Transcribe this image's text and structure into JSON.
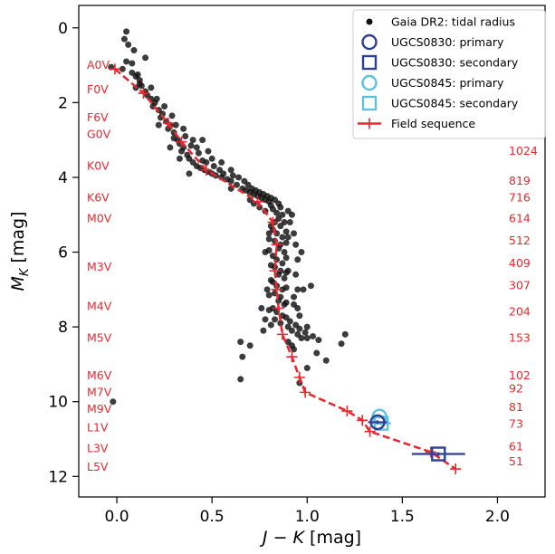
{
  "chart_data": {
    "type": "scatter",
    "xlabel": "J − K [mag]",
    "ylabel": "M_K [mag]",
    "xlim": [
      -0.2,
      2.25
    ],
    "ylim": [
      12.55,
      -0.6
    ],
    "y_inverted": true,
    "grid": false,
    "legend_position": "top-right",
    "x_ticks": [
      {
        "value": 0.0,
        "label": "0.0"
      },
      {
        "value": 0.5,
        "label": "0.5"
      },
      {
        "value": 1.0,
        "label": "1.0"
      },
      {
        "value": 1.5,
        "label": "1.5"
      },
      {
        "value": 2.0,
        "label": "2.0"
      }
    ],
    "y_ticks": [
      {
        "value": 0,
        "label": "0"
      },
      {
        "value": 2,
        "label": "2"
      },
      {
        "value": 4,
        "label": "4"
      },
      {
        "value": 6,
        "label": "6"
      },
      {
        "value": 8,
        "label": "8"
      },
      {
        "value": 10,
        "label": "10"
      },
      {
        "value": 12,
        "label": "12"
      }
    ],
    "legend": [
      {
        "label": "Gaia DR2: tidal radius",
        "marker": "dot",
        "color": "#111111"
      },
      {
        "label": "UGCS0830: primary",
        "marker": "circle",
        "color": "#2e3f93"
      },
      {
        "label": "UGCS0830: secondary",
        "marker": "square",
        "color": "#2e3f93"
      },
      {
        "label": "UGCS0845: primary",
        "marker": "circle",
        "color": "#5bc4dc"
      },
      {
        "label": "UGCS0845: secondary",
        "marker": "square",
        "color": "#5bc4dc"
      },
      {
        "label": "Field sequence",
        "marker": "plus-dashed",
        "color": "#e8282e"
      }
    ],
    "field_sequence": [
      {
        "x": -0.01,
        "y": 1.1
      },
      {
        "x": 0.14,
        "y": 1.75
      },
      {
        "x": 0.27,
        "y": 2.55
      },
      {
        "x": 0.34,
        "y": 3.05
      },
      {
        "x": 0.47,
        "y": 3.8
      },
      {
        "x": 0.74,
        "y": 4.65
      },
      {
        "x": 0.82,
        "y": 5.2
      },
      {
        "x": 0.84,
        "y": 5.8
      },
      {
        "x": 0.83,
        "y": 6.5
      },
      {
        "x": 0.84,
        "y": 7.0
      },
      {
        "x": 0.85,
        "y": 7.5
      },
      {
        "x": 0.87,
        "y": 8.2
      },
      {
        "x": 0.92,
        "y": 8.8
      },
      {
        "x": 0.96,
        "y": 9.35
      },
      {
        "x": 0.99,
        "y": 9.75
      },
      {
        "x": 1.21,
        "y": 10.25
      },
      {
        "x": 1.29,
        "y": 10.5
      },
      {
        "x": 1.33,
        "y": 10.8
      },
      {
        "x": 1.65,
        "y": 11.35
      },
      {
        "x": 1.78,
        "y": 11.8
      }
    ],
    "ugcs0830": {
      "primary": {
        "x": 1.37,
        "y": 10.55,
        "xerr": 0.05,
        "yerr": 0.05
      },
      "secondary": {
        "x": 1.69,
        "y": 11.4,
        "xerr": 0.14,
        "yerr": 0.05
      }
    },
    "ugcs0845": {
      "primary": {
        "x": 1.38,
        "y": 10.4,
        "xerr": 0.03,
        "yerr": 0.05
      },
      "secondary": {
        "x": 1.39,
        "y": 10.58,
        "xerr": 0.05,
        "yerr": 0.05
      }
    },
    "spectral_types": [
      {
        "label": "A0V",
        "y": 1.0
      },
      {
        "label": "F0V",
        "y": 1.65
      },
      {
        "label": "F6V",
        "y": 2.4
      },
      {
        "label": "G0V",
        "y": 2.85
      },
      {
        "label": "K0V",
        "y": 3.7
      },
      {
        "label": "K6V",
        "y": 4.55
      },
      {
        "label": "M0V",
        "y": 5.1
      },
      {
        "label": "M3V",
        "y": 6.4
      },
      {
        "label": "M4V",
        "y": 7.45
      },
      {
        "label": "M5V",
        "y": 8.3
      },
      {
        "label": "M6V",
        "y": 9.3
      },
      {
        "label": "M7V",
        "y": 9.75
      },
      {
        "label": "M9V",
        "y": 10.2
      },
      {
        "label": "L1V",
        "y": 10.7
      },
      {
        "label": "L3V",
        "y": 11.25
      },
      {
        "label": "L5V",
        "y": 11.75
      }
    ],
    "right_values": [
      {
        "label": "1024",
        "y": 3.3
      },
      {
        "label": "819",
        "y": 4.1
      },
      {
        "label": "716",
        "y": 4.55
      },
      {
        "label": "614",
        "y": 5.1
      },
      {
        "label": "512",
        "y": 5.7
      },
      {
        "label": "409",
        "y": 6.3
      },
      {
        "label": "307",
        "y": 6.9
      },
      {
        "label": "204",
        "y": 7.6
      },
      {
        "label": "153",
        "y": 8.3
      },
      {
        "label": "102",
        "y": 9.3
      },
      {
        "label": "92",
        "y": 9.65
      },
      {
        "label": "81",
        "y": 10.15
      },
      {
        "label": "73",
        "y": 10.6
      },
      {
        "label": "61",
        "y": 11.2
      },
      {
        "label": "51",
        "y": 11.6
      }
    ],
    "gaia_points": [
      [
        0.06,
        0.45
      ],
      [
        0.05,
        0.9
      ],
      [
        0.08,
        0.95
      ],
      [
        -0.03,
        1.05
      ],
      [
        0.03,
        1.1
      ],
      [
        0.1,
        1.3
      ],
      [
        0.09,
        0.6
      ],
      [
        0.11,
        1.25
      ],
      [
        0.12,
        1.4
      ],
      [
        0.12,
        1.5
      ],
      [
        0.1,
        1.6
      ],
      [
        0.13,
        1.55
      ],
      [
        0.15,
        1.7
      ],
      [
        0.16,
        1.8
      ],
      [
        0.18,
        1.9
      ],
      [
        0.2,
        2.0
      ],
      [
        0.19,
        2.1
      ],
      [
        0.22,
        2.2
      ],
      [
        0.24,
        2.3
      ],
      [
        0.23,
        2.4
      ],
      [
        0.26,
        2.5
      ],
      [
        0.28,
        2.6
      ],
      [
        0.27,
        2.7
      ],
      [
        0.3,
        2.8
      ],
      [
        0.3,
        2.95
      ],
      [
        0.32,
        3.0
      ],
      [
        0.33,
        3.1
      ],
      [
        0.35,
        3.2
      ],
      [
        0.34,
        3.3
      ],
      [
        0.37,
        3.4
      ],
      [
        0.38,
        3.5
      ],
      [
        0.4,
        3.6
      ],
      [
        0.42,
        3.7
      ],
      [
        0.44,
        3.75
      ],
      [
        0.46,
        3.8
      ],
      [
        0.48,
        3.85
      ],
      [
        0.5,
        3.9
      ],
      [
        0.52,
        3.95
      ],
      [
        0.55,
        4.0
      ],
      [
        0.58,
        4.05
      ],
      [
        0.6,
        4.1
      ],
      [
        0.63,
        4.2
      ],
      [
        0.66,
        4.3
      ],
      [
        0.68,
        4.35
      ],
      [
        0.7,
        4.4
      ],
      [
        0.72,
        4.45
      ],
      [
        0.74,
        4.5
      ],
      [
        0.76,
        4.55
      ],
      [
        0.78,
        4.6
      ],
      [
        0.8,
        4.65
      ],
      [
        0.81,
        4.75
      ],
      [
        0.82,
        4.85
      ],
      [
        0.84,
        4.95
      ],
      [
        0.85,
        5.1
      ],
      [
        0.83,
        5.2
      ],
      [
        0.86,
        5.3
      ],
      [
        0.82,
        5.4
      ],
      [
        0.84,
        5.5
      ],
      [
        0.87,
        5.6
      ],
      [
        0.83,
        5.7
      ],
      [
        0.86,
        5.8
      ],
      [
        0.85,
        5.9
      ],
      [
        0.88,
        6.0
      ],
      [
        0.82,
        6.1
      ],
      [
        0.84,
        6.2
      ],
      [
        0.87,
        6.3
      ],
      [
        0.83,
        6.4
      ],
      [
        0.86,
        6.5
      ],
      [
        0.85,
        6.6
      ],
      [
        0.88,
        6.7
      ],
      [
        0.82,
        6.8
      ],
      [
        0.84,
        6.9
      ],
      [
        0.87,
        7.0
      ],
      [
        0.83,
        7.1
      ],
      [
        0.86,
        7.2
      ],
      [
        0.85,
        7.3
      ],
      [
        0.88,
        7.4
      ],
      [
        0.82,
        7.5
      ],
      [
        0.84,
        7.6
      ],
      [
        0.87,
        7.7
      ],
      [
        0.83,
        7.8
      ],
      [
        0.86,
        7.9
      ],
      [
        0.9,
        8.0
      ],
      [
        0.92,
        8.1
      ],
      [
        0.95,
        8.2
      ],
      [
        0.78,
        6.0
      ],
      [
        0.9,
        6.5
      ],
      [
        0.79,
        7.0
      ],
      [
        0.93,
        7.2
      ],
      [
        0.78,
        7.8
      ],
      [
        0.95,
        7.5
      ],
      [
        0.9,
        5.6
      ],
      [
        0.8,
        5.5
      ],
      [
        0.97,
        8.3
      ],
      [
        0.93,
        8.6
      ],
      [
        0.66,
        8.8
      ],
      [
        0.65,
        9.4
      ],
      [
        0.7,
        8.5
      ],
      [
        0.65,
        8.4
      ],
      [
        1.0,
        8.3
      ],
      [
        1.2,
        8.2
      ],
      [
        1.18,
        8.45
      ],
      [
        1.05,
        8.7
      ],
      [
        1.1,
        8.9
      ],
      [
        1.0,
        9.1
      ],
      [
        0.96,
        9.5
      ],
      [
        1.0,
        8.0
      ],
      [
        0.97,
        6.0
      ],
      [
        0.98,
        7.0
      ],
      [
        1.02,
        6.9
      ],
      [
        0.76,
        7.5
      ],
      [
        0.77,
        8.1
      ],
      [
        -0.02,
        10.0
      ],
      [
        0.05,
        0.1
      ],
      [
        0.04,
        0.3
      ],
      [
        0.15,
        0.8
      ],
      [
        0.08,
        1.2
      ],
      [
        0.18,
        1.6
      ],
      [
        0.21,
        1.9
      ],
      [
        0.25,
        2.1
      ],
      [
        0.29,
        2.35
      ],
      [
        0.31,
        2.6
      ],
      [
        0.36,
        2.9
      ],
      [
        0.39,
        3.15
      ],
      [
        0.43,
        3.35
      ],
      [
        0.45,
        3.55
      ],
      [
        0.47,
        3.6
      ],
      [
        0.51,
        3.7
      ],
      [
        0.54,
        3.8
      ],
      [
        0.56,
        3.9
      ],
      [
        0.61,
        3.95
      ],
      [
        0.64,
        4.0
      ],
      [
        0.67,
        4.1
      ],
      [
        0.69,
        4.2
      ],
      [
        0.71,
        4.3
      ],
      [
        0.73,
        4.35
      ],
      [
        0.75,
        4.4
      ],
      [
        0.77,
        4.45
      ],
      [
        0.79,
        4.5
      ],
      [
        0.81,
        4.55
      ],
      [
        0.83,
        4.6
      ],
      [
        0.85,
        4.7
      ],
      [
        0.86,
        4.8
      ],
      [
        0.87,
        5.0
      ],
      [
        0.88,
        5.2
      ],
      [
        0.81,
        5.3
      ],
      [
        0.89,
        5.45
      ],
      [
        0.8,
        5.65
      ],
      [
        0.89,
        5.75
      ],
      [
        0.8,
        5.95
      ],
      [
        0.89,
        6.15
      ],
      [
        0.81,
        6.35
      ],
      [
        0.89,
        6.55
      ],
      [
        0.81,
        6.75
      ],
      [
        0.89,
        6.95
      ],
      [
        0.8,
        7.15
      ],
      [
        0.89,
        7.35
      ],
      [
        0.8,
        7.55
      ],
      [
        0.89,
        7.75
      ],
      [
        0.81,
        7.95
      ],
      [
        0.91,
        7.85
      ],
      [
        0.94,
        7.95
      ],
      [
        0.96,
        8.05
      ],
      [
        0.99,
        8.15
      ],
      [
        1.03,
        8.25
      ],
      [
        1.06,
        8.35
      ],
      [
        0.9,
        8.4
      ],
      [
        0.92,
        8.5
      ],
      [
        0.28,
        3.2
      ],
      [
        0.33,
        3.5
      ],
      [
        0.38,
        3.9
      ],
      [
        0.22,
        2.6
      ],
      [
        0.5,
        3.5
      ],
      [
        0.55,
        3.6
      ],
      [
        0.6,
        3.8
      ],
      [
        0.42,
        3.2
      ],
      [
        0.45,
        3.0
      ],
      [
        0.35,
        2.7
      ],
      [
        0.4,
        3.0
      ],
      [
        0.48,
        3.3
      ],
      [
        0.6,
        4.3
      ],
      [
        0.7,
        4.6
      ],
      [
        0.75,
        4.8
      ],
      [
        0.72,
        4.7
      ],
      [
        0.78,
        4.9
      ],
      [
        0.9,
        4.9
      ],
      [
        0.92,
        5.0
      ],
      [
        0.91,
        5.2
      ],
      [
        0.93,
        5.5
      ],
      [
        0.94,
        5.8
      ],
      [
        0.95,
        6.2
      ],
      [
        0.94,
        6.6
      ],
      [
        0.95,
        7.0
      ],
      [
        0.93,
        7.4
      ],
      [
        0.96,
        7.7
      ]
    ]
  }
}
